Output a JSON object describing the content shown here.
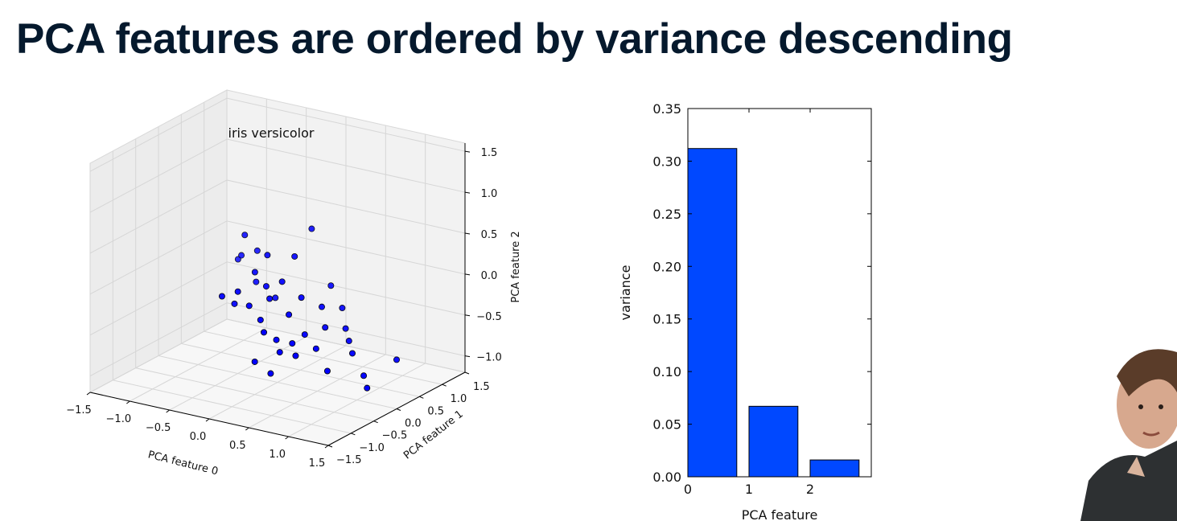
{
  "slide": {
    "title": "PCA features are ordered by variance descending"
  },
  "chart_data": [
    {
      "type": "scatter",
      "title": "iris versicolor",
      "xlabel": "PCA feature 0",
      "ylabel": "PCA feature 1",
      "zlabel": "PCA feature 2",
      "xlim": [
        -1.5,
        1.5
      ],
      "ylim": [
        -1.5,
        1.5
      ],
      "zlim": [
        -1.2,
        1.6
      ],
      "x_ticks": [
        "−1.5",
        "−1.0",
        "−0.5",
        "0.0",
        "0.5",
        "1.0",
        "1.5"
      ],
      "y_ticks": [
        "−1.5",
        "−1.0",
        "−0.5",
        "0.0",
        "0.5",
        "1.0",
        "1.5"
      ],
      "z_ticks": [
        "−1.0",
        "−0.5",
        "0.0",
        "0.5",
        "1.0",
        "1.5"
      ],
      "grid": true,
      "marker_color": "#0000ff",
      "points": [
        [
          -0.9,
          0.7,
          -0.1
        ],
        [
          -0.8,
          0.6,
          0.0
        ],
        [
          -0.7,
          0.5,
          0.3
        ],
        [
          -0.6,
          0.6,
          0.1
        ],
        [
          -0.5,
          0.4,
          -0.2
        ],
        [
          -0.6,
          0.1,
          -0.4
        ],
        [
          -0.7,
          0.0,
          -0.3
        ],
        [
          -0.5,
          0.0,
          -0.2
        ],
        [
          -0.4,
          0.2,
          0.0
        ],
        [
          -0.3,
          0.3,
          0.2
        ],
        [
          -0.2,
          0.1,
          -0.1
        ],
        [
          -0.3,
          -0.1,
          -0.3
        ],
        [
          -0.1,
          0.0,
          -0.2
        ],
        [
          0.0,
          0.1,
          0.0
        ],
        [
          0.1,
          0.2,
          0.3
        ],
        [
          0.2,
          0.4,
          0.6
        ],
        [
          -0.1,
          -0.2,
          -0.4
        ],
        [
          0.0,
          -0.3,
          -0.5
        ],
        [
          0.1,
          -0.2,
          -0.6
        ],
        [
          0.2,
          -0.1,
          -0.3
        ],
        [
          0.3,
          0.0,
          -0.1
        ],
        [
          0.2,
          -0.3,
          -0.7
        ],
        [
          0.3,
          -0.2,
          -0.6
        ],
        [
          0.4,
          -0.1,
          -0.5
        ],
        [
          0.5,
          0.1,
          -0.2
        ],
        [
          0.6,
          0.0,
          -0.4
        ],
        [
          0.4,
          -0.3,
          -0.7
        ],
        [
          0.7,
          0.2,
          -0.2
        ],
        [
          0.8,
          0.1,
          -0.4
        ],
        [
          0.6,
          -0.2,
          -0.6
        ],
        [
          0.9,
          0.0,
          -0.5
        ],
        [
          1.0,
          -0.1,
          -0.6
        ],
        [
          0.8,
          -0.3,
          -0.8
        ],
        [
          1.2,
          -0.2,
          -0.8
        ],
        [
          1.3,
          -0.3,
          -0.9
        ],
        [
          1.5,
          0.0,
          -0.6
        ],
        [
          0.0,
          -0.5,
          -0.8
        ],
        [
          0.2,
          -0.5,
          -0.9
        ],
        [
          -0.2,
          0.3,
          -0.3
        ],
        [
          0.5,
          0.3,
          0.0
        ]
      ]
    },
    {
      "type": "bar",
      "xlabel": "PCA feature",
      "ylabel": "variance",
      "categories": [
        "0",
        "1",
        "2"
      ],
      "values": [
        0.312,
        0.067,
        0.016
      ],
      "ylim": [
        0,
        0.35
      ],
      "y_ticks": [
        "0.00",
        "0.05",
        "0.10",
        "0.15",
        "0.20",
        "0.25",
        "0.30",
        "0.35"
      ],
      "x_ticks": [
        "0",
        "1",
        "2"
      ],
      "bar_color": "#0048ff"
    }
  ]
}
